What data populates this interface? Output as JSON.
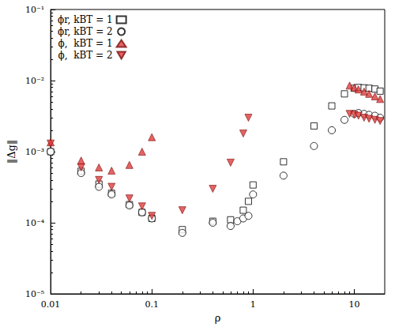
{
  "chart_data": {
    "type": "scatter",
    "x_label": "ρ",
    "y_label": "‖Δg‖",
    "log": true,
    "grid": false,
    "legend": "top-left",
    "xlim": [
      0.01,
      20
    ],
    "xticks": [
      0.01,
      0.1,
      1,
      10
    ],
    "ylim": [
      1e-05,
      0.1
    ],
    "yticks": [
      {
        "value": 1e-05,
        "label": "10⁻⁵"
      },
      {
        "value": 0.0001,
        "label": "10⁻⁴"
      },
      {
        "value": 0.001,
        "label": "10⁻³"
      },
      {
        "value": 0.01,
        "label": "10⁻²"
      },
      {
        "value": 0.1,
        "label": "10⁻¹"
      }
    ],
    "series": [
      {
        "name": "ϕr, kBT = 1",
        "color": "#000000",
        "marker": "open-square",
        "x": [
          0.01,
          0.02,
          0.03,
          0.04,
          0.06,
          0.08,
          0.1,
          0.2,
          0.4,
          0.6,
          0.8,
          0.9,
          1,
          2,
          4,
          6,
          8,
          10,
          11,
          12.5,
          14,
          16,
          18
        ],
        "values": [
          0.001,
          0.00053,
          0.00035,
          0.00026,
          0.00018,
          0.00014,
          0.000115,
          8e-05,
          0.000105,
          0.00011,
          0.00015,
          0.0002,
          0.00034,
          0.00072,
          0.0023,
          0.0044,
          0.0065,
          0.0078,
          0.008,
          0.0079,
          0.0078,
          0.0076,
          0.0071
        ]
      },
      {
        "name": "ϕr, kBT = 2",
        "color": "#000000",
        "marker": "open-circle",
        "x": [
          0.01,
          0.02,
          0.03,
          0.04,
          0.06,
          0.08,
          0.1,
          0.2,
          0.4,
          0.6,
          0.7,
          0.8,
          0.9,
          1,
          2,
          4,
          6,
          8,
          10,
          11,
          12.5,
          14,
          16,
          18
        ],
        "values": [
          0.001,
          0.0005,
          0.00032,
          0.00025,
          0.000175,
          0.00014,
          0.000115,
          7.2e-05,
          0.0001,
          9e-05,
          0.000105,
          0.000115,
          0.000125,
          0.00025,
          0.00046,
          0.0012,
          0.002,
          0.0028,
          0.0034,
          0.0035,
          0.0034,
          0.0033,
          0.0032,
          0.003
        ]
      },
      {
        "name": "ϕ,  kBT = 1",
        "color": "#e03c3c",
        "marker": "triangle-up",
        "x": [
          0.01,
          0.02,
          0.03,
          0.04,
          0.06,
          0.08,
          0.1,
          9,
          10,
          11,
          12.5,
          14,
          16,
          18
        ],
        "values": [
          0.00135,
          0.00075,
          0.0006,
          0.00054,
          0.00065,
          0.001,
          0.0016,
          0.0085,
          0.008,
          0.0075,
          0.007,
          0.0065,
          0.006,
          0.0055
        ]
      },
      {
        "name": "ϕ,  kBT = 2",
        "color": "#e03c3c",
        "marker": "triangle-down",
        "x": [
          0.01,
          0.02,
          0.03,
          0.04,
          0.06,
          0.08,
          0.1,
          0.2,
          0.4,
          0.6,
          0.8,
          0.9,
          9,
          10,
          11,
          12.5,
          14,
          16,
          18
        ],
        "values": [
          0.0013,
          0.0006,
          0.0004,
          0.00032,
          0.00022,
          0.00017,
          0.000125,
          0.00015,
          0.0003,
          0.0007,
          0.0018,
          0.003,
          0.0034,
          0.0033,
          0.0032,
          0.003,
          0.0029,
          0.0028,
          0.0027
        ]
      }
    ]
  }
}
